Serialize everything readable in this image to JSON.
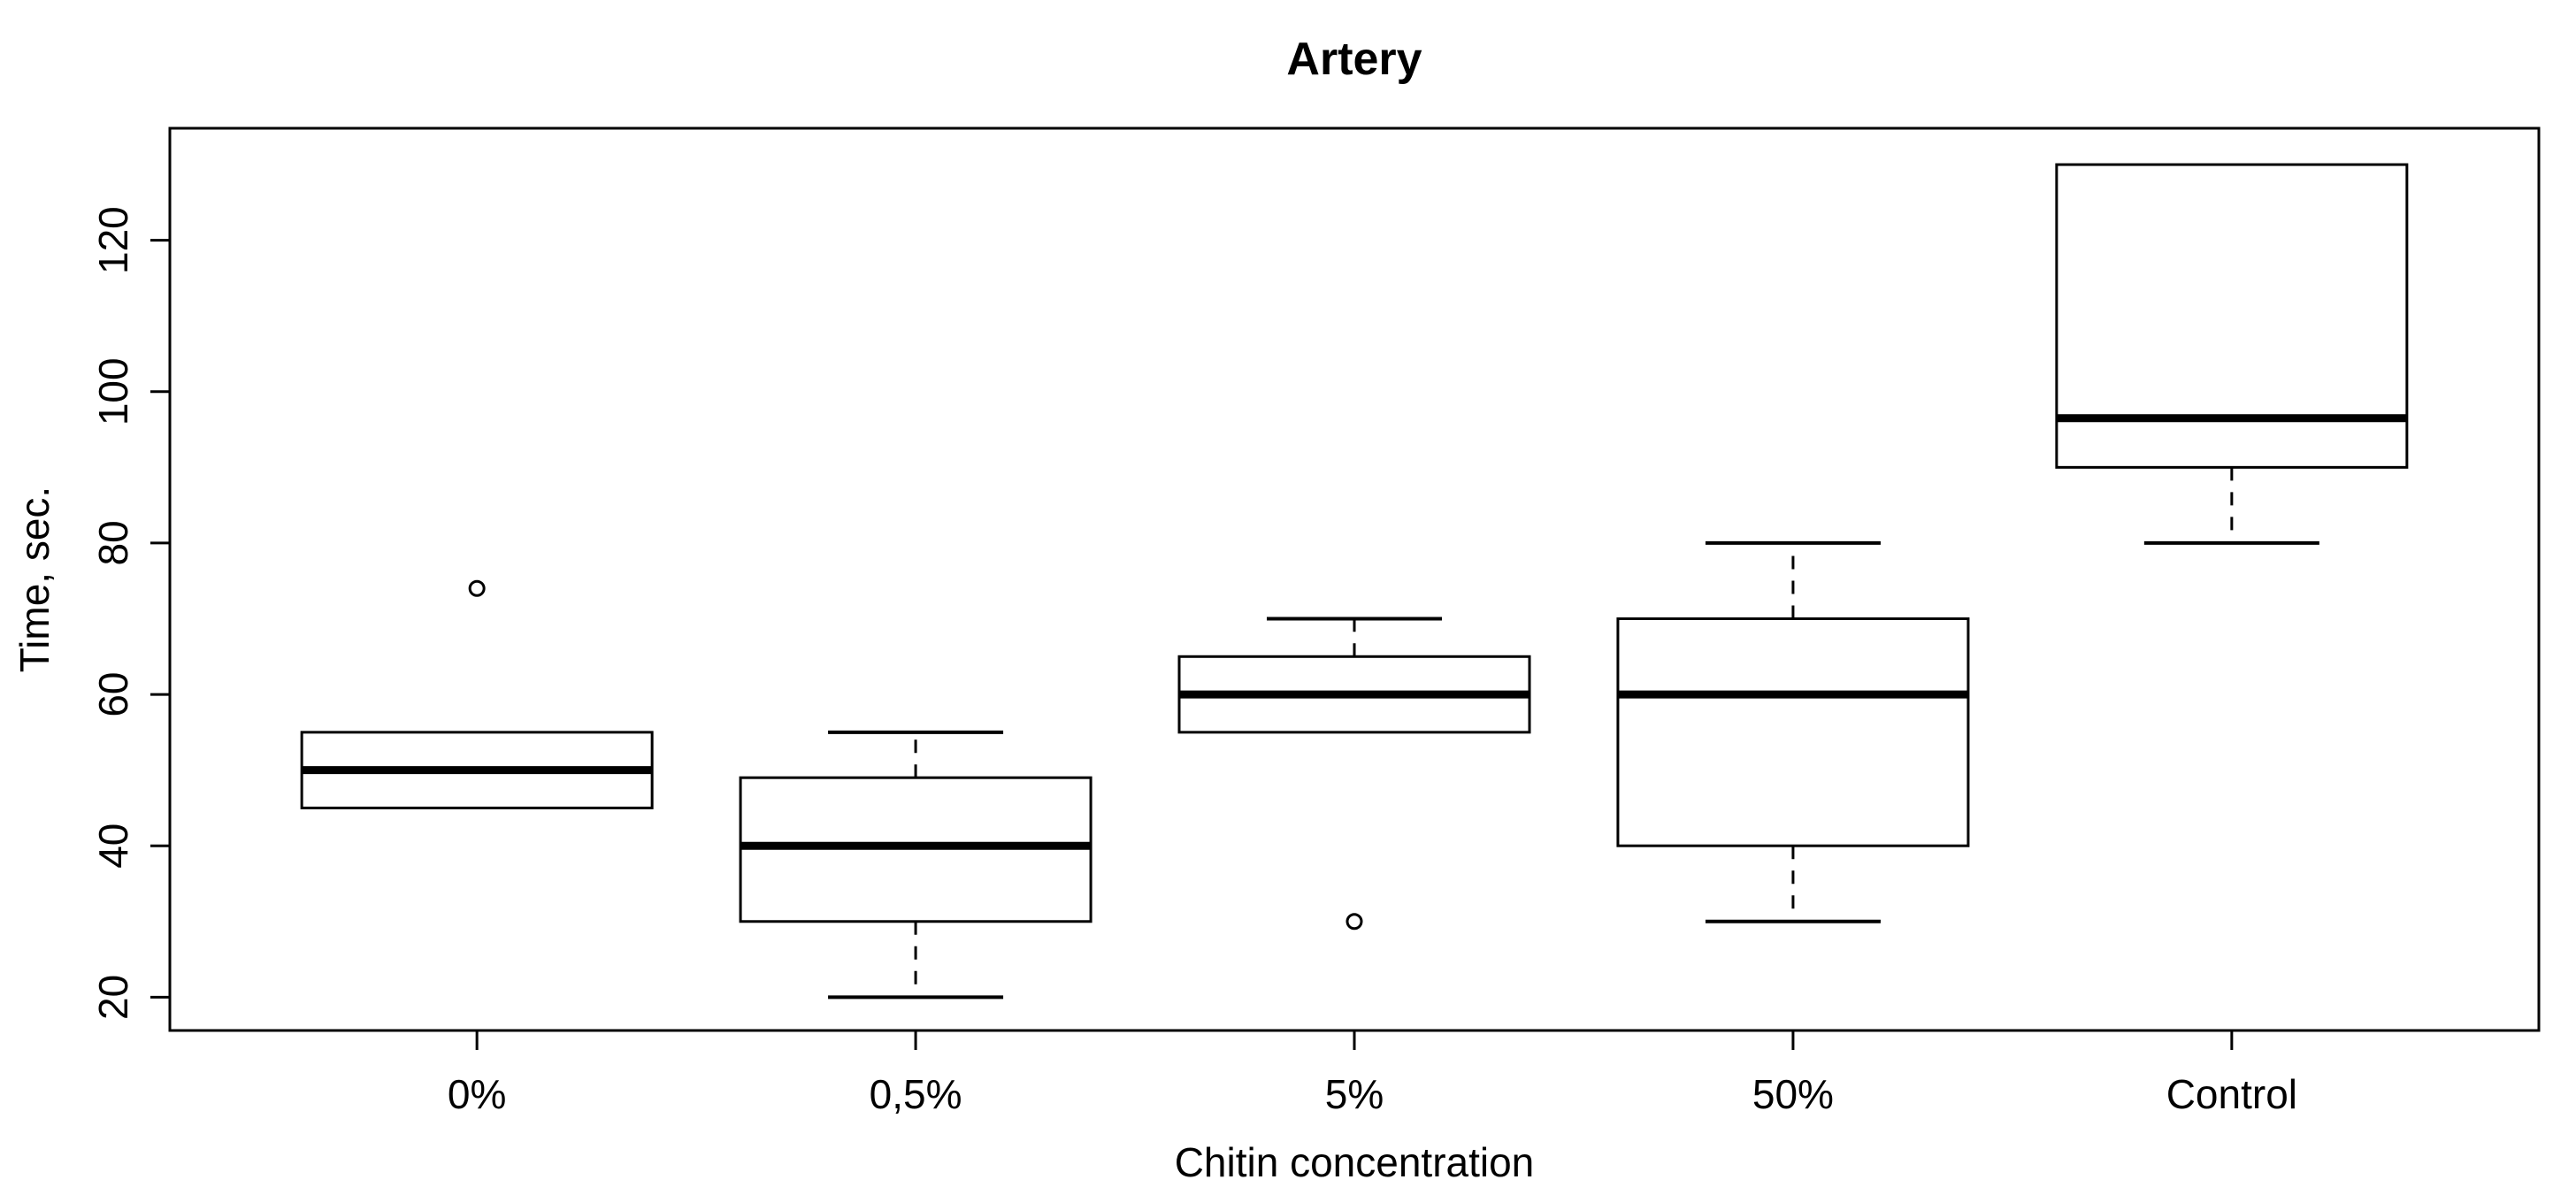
{
  "chart_data": {
    "type": "boxplot",
    "title": "Artery",
    "xlabel": "Chitin concentration",
    "ylabel": "Time, sec.",
    "categories": [
      "0%",
      "0,5%",
      "5%",
      "50%",
      "Control"
    ],
    "yticks": [
      20,
      40,
      60,
      80,
      100,
      120
    ],
    "ylim": [
      15.6,
      134.8
    ],
    "grid": false,
    "legend": "none",
    "series": [
      {
        "category": "0%",
        "whisker_low": 45,
        "q1": 45,
        "median": 50,
        "q3": 55,
        "whisker_high": 55,
        "outliers": [
          74
        ]
      },
      {
        "category": "0,5%",
        "whisker_low": 20,
        "q1": 30,
        "median": 40,
        "q3": 49,
        "whisker_high": 55,
        "outliers": []
      },
      {
        "category": "5%",
        "whisker_low": 55,
        "q1": 55,
        "median": 60,
        "q3": 65,
        "whisker_high": 70,
        "outliers": [
          30
        ]
      },
      {
        "category": "50%",
        "whisker_low": 30,
        "q1": 40,
        "median": 60,
        "q3": 70,
        "whisker_high": 80,
        "outliers": []
      },
      {
        "category": "Control",
        "whisker_low": 80,
        "q1": 90,
        "median": 96.5,
        "q3": 130,
        "whisker_high": 130,
        "outliers": []
      }
    ],
    "colors": {
      "stroke": "#000000",
      "background": "#ffffff",
      "box_fill": "#ffffff"
    }
  }
}
